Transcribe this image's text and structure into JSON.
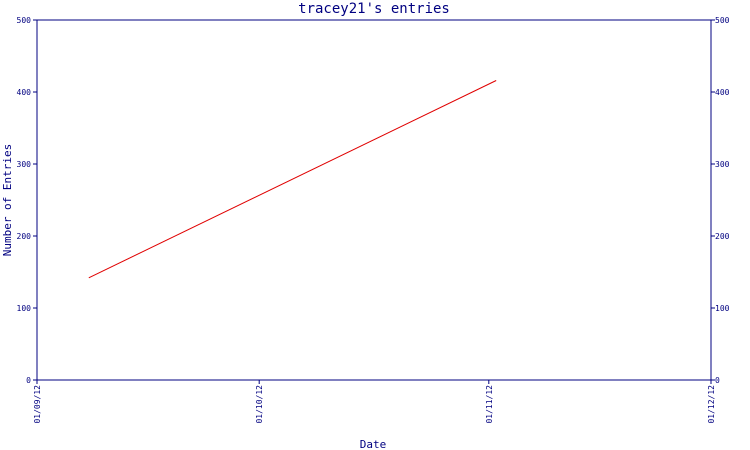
{
  "chart_data": {
    "type": "line",
    "title": "tracey21's entries",
    "xlabel": "Date",
    "ylabel": "Number of Entries",
    "x_ticks": [
      "01/09/12",
      "01/10/12",
      "01/11/12",
      "01/12/12"
    ],
    "x_range": [
      "2012-09-01",
      "2012-12-01"
    ],
    "ylim": [
      0,
      500
    ],
    "y_ticks": [
      0,
      100,
      200,
      300,
      400,
      500
    ],
    "y_ticks_right": [
      0,
      100,
      200,
      300,
      400,
      500
    ],
    "grid": false,
    "legend": "none",
    "series": [
      {
        "x": [
          "2012-09-08",
          "2012-11-02"
        ],
        "y": [
          142,
          416
        ],
        "color": "#e00000"
      }
    ],
    "axis_color": "#000080"
  }
}
